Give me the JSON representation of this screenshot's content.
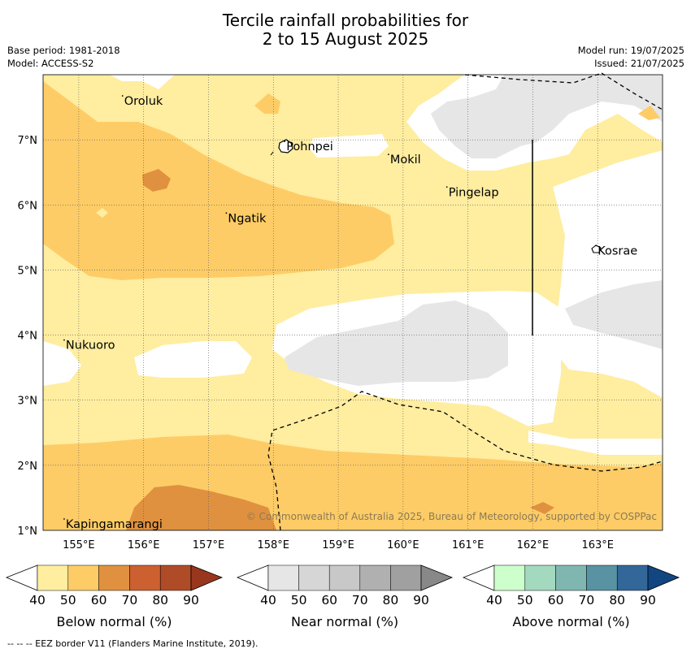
{
  "title": {
    "line1": "Tercile rainfall probabilities for",
    "line2": "2 to 15 August 2025"
  },
  "meta_left": {
    "base_period": "Base period: 1981-2018",
    "model": "Model: ACCESS-S2"
  },
  "meta_right": {
    "model_run": "Model run: 19/07/2025",
    "issued": "Issued: 21/07/2025"
  },
  "map": {
    "lat_labels": [
      "7°N",
      "6°N",
      "5°N",
      "4°N",
      "3°N",
      "2°N",
      "1°N"
    ],
    "lon_labels": [
      "155°E",
      "156°E",
      "157°E",
      "158°E",
      "159°E",
      "160°E",
      "161°E",
      "162°E",
      "163°E"
    ],
    "places": [
      {
        "name": "Oroluk",
        "lon": 155.7,
        "lat": 7.6
      },
      {
        "name": "Pohnpei",
        "lon": 158.2,
        "lat": 6.9
      },
      {
        "name": "Mokil",
        "lon": 159.8,
        "lat": 6.7
      },
      {
        "name": "Pingelap",
        "lon": 160.7,
        "lat": 6.2
      },
      {
        "name": "Ngatik",
        "lon": 157.3,
        "lat": 5.8
      },
      {
        "name": "Kosrae",
        "lon": 163.0,
        "lat": 5.3
      },
      {
        "name": "Nukuoro",
        "lon": 154.8,
        "lat": 3.85
      },
      {
        "name": "Kapingamarangi",
        "lon": 154.8,
        "lat": 1.1
      }
    ],
    "copyright": "© Commonwealth of Australia 2025, Bureau of Meteorology, supported by COSPPac"
  },
  "colors": {
    "below": [
      "#ffeda0",
      "#fecc66",
      "#e0913f",
      "#cc6030",
      "#b04b28",
      "#98361e"
    ],
    "near": [
      "#e6e6e6",
      "#d6d6d6",
      "#c8c8c8",
      "#b0b0b0",
      "#a0a0a0",
      "#888888"
    ],
    "above": [
      "#ccffcc",
      "#a3d9be",
      "#7fb7b0",
      "#5892a3",
      "#336699",
      "#124680"
    ]
  },
  "legends": [
    {
      "key": "below",
      "caption": "Below normal (%)",
      "ticks": [
        "40",
        "50",
        "60",
        "70",
        "80",
        "90"
      ]
    },
    {
      "key": "near",
      "caption": "Near normal (%)",
      "ticks": [
        "40",
        "50",
        "60",
        "70",
        "80",
        "90"
      ]
    },
    {
      "key": "above",
      "caption": "Above normal (%)",
      "ticks": [
        "40",
        "50",
        "60",
        "70",
        "80",
        "90"
      ]
    }
  ],
  "footer": "--  --  -- EEZ border V11 (Flanders Marine Institute, 2019)."
}
